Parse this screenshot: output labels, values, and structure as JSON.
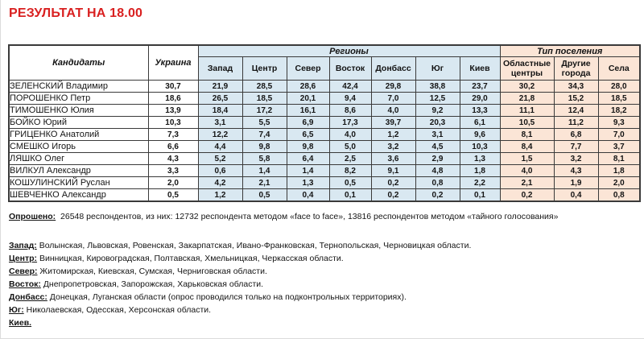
{
  "title": "РЕЗУЛЬТАТ НА 18.00",
  "colors": {
    "title_red": "#d92020",
    "regions_fill": "#d9e8f1",
    "settlement_fill": "#fbe5d6",
    "border": "#3a3a3a"
  },
  "table": {
    "candidates_header": "Кандидаты",
    "ukraine_header": "Украина",
    "regions_group": "Регионы",
    "settlement_group": "Тип поселения",
    "region_cols": [
      "Запад",
      "Центр",
      "Север",
      "Восток",
      "Донбасс",
      "Юг",
      "Киев"
    ],
    "settlement_cols": [
      "Областные центры",
      "Другие города",
      "Села"
    ],
    "rows": [
      {
        "name": "ЗЕЛЕНСКИЙ Владимир",
        "values": [
          "30,7",
          "21,9",
          "28,5",
          "28,6",
          "42,4",
          "29,8",
          "38,8",
          "23,7",
          "30,2",
          "34,3",
          "28,0"
        ]
      },
      {
        "name": "ПОРОШЕНКО Петр",
        "values": [
          "18,6",
          "26,5",
          "18,5",
          "20,1",
          "9,4",
          "7,0",
          "12,5",
          "29,0",
          "21,8",
          "15,2",
          "18,5"
        ]
      },
      {
        "name": "ТИМОШЕНКО Юлия",
        "values": [
          "13,9",
          "18,4",
          "17,2",
          "16,1",
          "8,6",
          "4,0",
          "9,2",
          "13,3",
          "11,1",
          "12,4",
          "18,2"
        ]
      },
      {
        "name": "БОЙКО Юрий",
        "values": [
          "10,3",
          "3,1",
          "5,5",
          "6,9",
          "17,3",
          "39,7",
          "20,3",
          "6,1",
          "10,5",
          "11,2",
          "9,3"
        ]
      },
      {
        "name": "ГРИЦЕНКО Анатолий",
        "values": [
          "7,3",
          "12,2",
          "7,4",
          "6,5",
          "4,0",
          "1,2",
          "3,1",
          "9,6",
          "8,1",
          "6,8",
          "7,0"
        ]
      },
      {
        "name": "СМЕШКО Игорь",
        "values": [
          "6,6",
          "4,4",
          "9,8",
          "9,8",
          "5,0",
          "3,2",
          "4,5",
          "10,3",
          "8,4",
          "7,7",
          "3,7"
        ]
      },
      {
        "name": "ЛЯШКО Олег",
        "values": [
          "4,3",
          "5,2",
          "5,8",
          "6,4",
          "2,5",
          "3,6",
          "2,9",
          "1,3",
          "1,5",
          "3,2",
          "8,1"
        ]
      },
      {
        "name": "ВИЛКУЛ Александр",
        "values": [
          "3,3",
          "0,6",
          "1,4",
          "1,4",
          "8,2",
          "9,1",
          "4,8",
          "1,8",
          "4,0",
          "4,3",
          "1,8"
        ]
      },
      {
        "name": "КОШУЛИНСКИЙ Руслан",
        "values": [
          "2,0",
          "4,2",
          "2,1",
          "1,3",
          "0,5",
          "0,2",
          "0,8",
          "2,2",
          "2,1",
          "1,9",
          "2,0"
        ]
      },
      {
        "name": "ШЕВЧЕНКО Александр",
        "values": [
          "0,5",
          "1,2",
          "0,5",
          "0,4",
          "0,1",
          "0,2",
          "0,2",
          "0,1",
          "0,2",
          "0,4",
          "0,8"
        ]
      }
    ]
  },
  "footnotes": {
    "surveyed_label": "Опрошено:",
    "surveyed_text": "26548 респондентов, из них:  12732 респондента методом «face to face»,  13816 респондентов  методом «тайного голосования»",
    "legend": [
      {
        "label": "Запад:",
        "text": "Волынская, Львовская, Ровенская, Закарпатская, Ивано-Франковская, Тернопольская, Черновицкая области."
      },
      {
        "label": "Центр:",
        "text": "Винницкая, Кировоградская, Полтавская, Хмельницкая, Черкасская области."
      },
      {
        "label": "Север:",
        "text": "Житомирская, Киевская, Сумская, Черниговская области."
      },
      {
        "label": "Восток:",
        "text": "Днепропетровская, Запорожская, Харьковская области."
      },
      {
        "label": "Донбасс:",
        "text": "Донецкая, Луганская области (опрос проводился только на подконтрольных территориях)."
      },
      {
        "label": "Юг:",
        "text": "Николаевская, Одесская, Херсонская области."
      },
      {
        "label": "Киев.",
        "text": ""
      }
    ]
  }
}
